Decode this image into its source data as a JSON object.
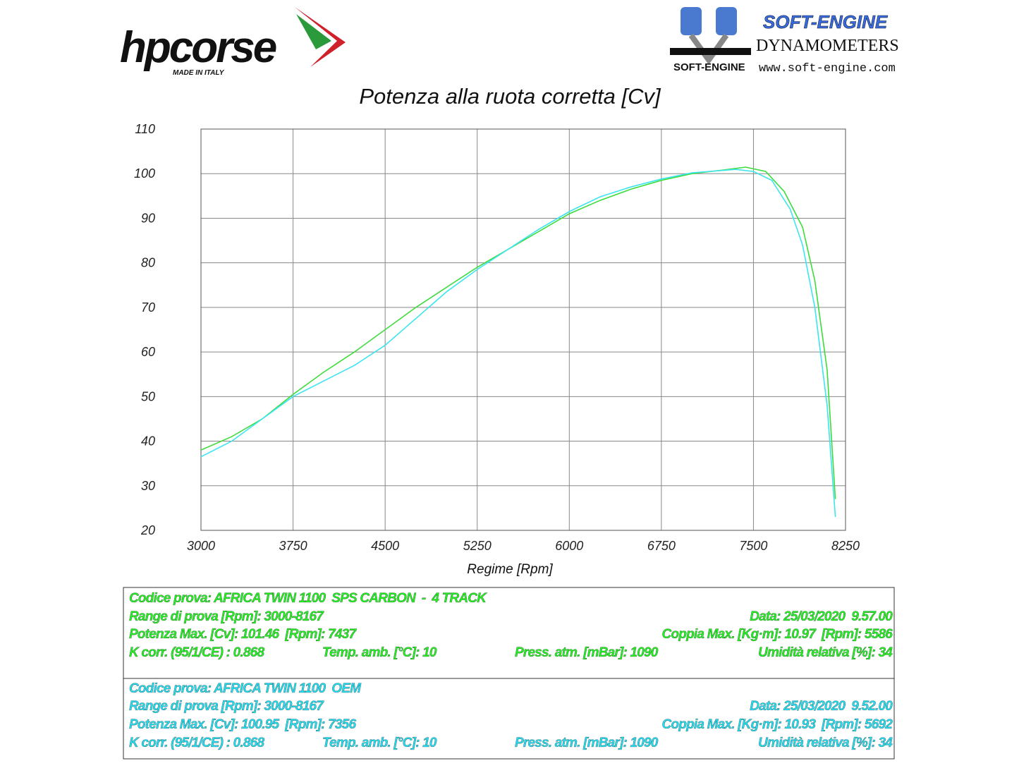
{
  "chart_data": {
    "type": "line",
    "title": "Potenza alla ruota corretta [Cv]",
    "x_label": "Regime [Rpm]",
    "xlim": [
      3000,
      8250
    ],
    "xticks": [
      3000,
      3750,
      4500,
      5250,
      6000,
      6750,
      7500,
      8250
    ],
    "ylim": [
      20,
      110
    ],
    "yticks": [
      20,
      30,
      40,
      50,
      60,
      70,
      80,
      90,
      100,
      110
    ],
    "grid": true,
    "series": [
      {
        "color": "#3cdc3c",
        "x": [
          3000,
          3250,
          3500,
          3750,
          4000,
          4250,
          4500,
          4750,
          5000,
          5250,
          5500,
          5750,
          6000,
          6250,
          6500,
          6750,
          7000,
          7250,
          7437,
          7600,
          7750,
          7900,
          8000,
          8100,
          8167
        ],
        "values": [
          38,
          41,
          45,
          50.5,
          55.5,
          60,
          65,
          70,
          74.5,
          79,
          83,
          87,
          91,
          94,
          96.5,
          98.5,
          100,
          100.8,
          101.46,
          100.5,
          96,
          88,
          76,
          56,
          27
        ]
      },
      {
        "color": "#3ce4f0",
        "x": [
          3000,
          3250,
          3500,
          3750,
          4000,
          4250,
          4500,
          4750,
          5000,
          5250,
          5500,
          5750,
          6000,
          6250,
          6500,
          6750,
          7000,
          7356,
          7500,
          7650,
          7800,
          7900,
          8000,
          8100,
          8167
        ],
        "values": [
          36.5,
          40,
          45,
          50,
          53.5,
          57,
          61.5,
          67.5,
          73.5,
          78.5,
          83,
          87.5,
          91.5,
          94.8,
          97,
          98.8,
          100.2,
          100.95,
          100.5,
          98.5,
          92,
          84,
          70,
          48,
          23
        ]
      }
    ]
  },
  "logos": {
    "brand": "hpcorse",
    "tagline": "MADE IN ITALY",
    "dyno_brand": "SOFT-ENGINE",
    "dyno_sub": "DYNAMOMETERS",
    "dyno_small": "SOFT-ENGINE",
    "website": "www.soft-engine.com"
  },
  "info_boxes": [
    {
      "color": "#22f022",
      "rows": [
        [
          "Codice prova: AFRICA TWIN 1100  SPS CARBON  -  4 TRACK"
        ],
        [
          "Range di prova [Rpm]: 3000-8167",
          "Data: 25/03/2020  9.57.00"
        ],
        [
          "Potenza Max. [Cv]: 101.46  [Rpm]: 7437",
          "Coppia Max. [Kg·m]: 10.97  [Rpm]: 5586"
        ],
        [
          "K corr. (95/1/CE) : 0.868",
          "Temp. amb. [°C]: 10",
          "Press. atm. [mBar]: 1090",
          "Umidità relativa [%]: 34"
        ]
      ]
    },
    {
      "color": "#22dcf0",
      "rows": [
        [
          "Codice prova: AFRICA TWIN 1100  OEM"
        ],
        [
          "Range di prova [Rpm]: 3000-8167",
          "Data: 25/03/2020  9.52.00"
        ],
        [
          "Potenza Max. [Cv]: 100.95  [Rpm]: 7356",
          "Coppia Max. [Kg·m]: 10.93  [Rpm]: 5692"
        ],
        [
          "K corr. (95/1/CE) : 0.868",
          "Temp. amb. [°C]: 10",
          "Press. atm. [mBar]: 1090",
          "Umidità relativa [%]: 34"
        ]
      ]
    }
  ]
}
